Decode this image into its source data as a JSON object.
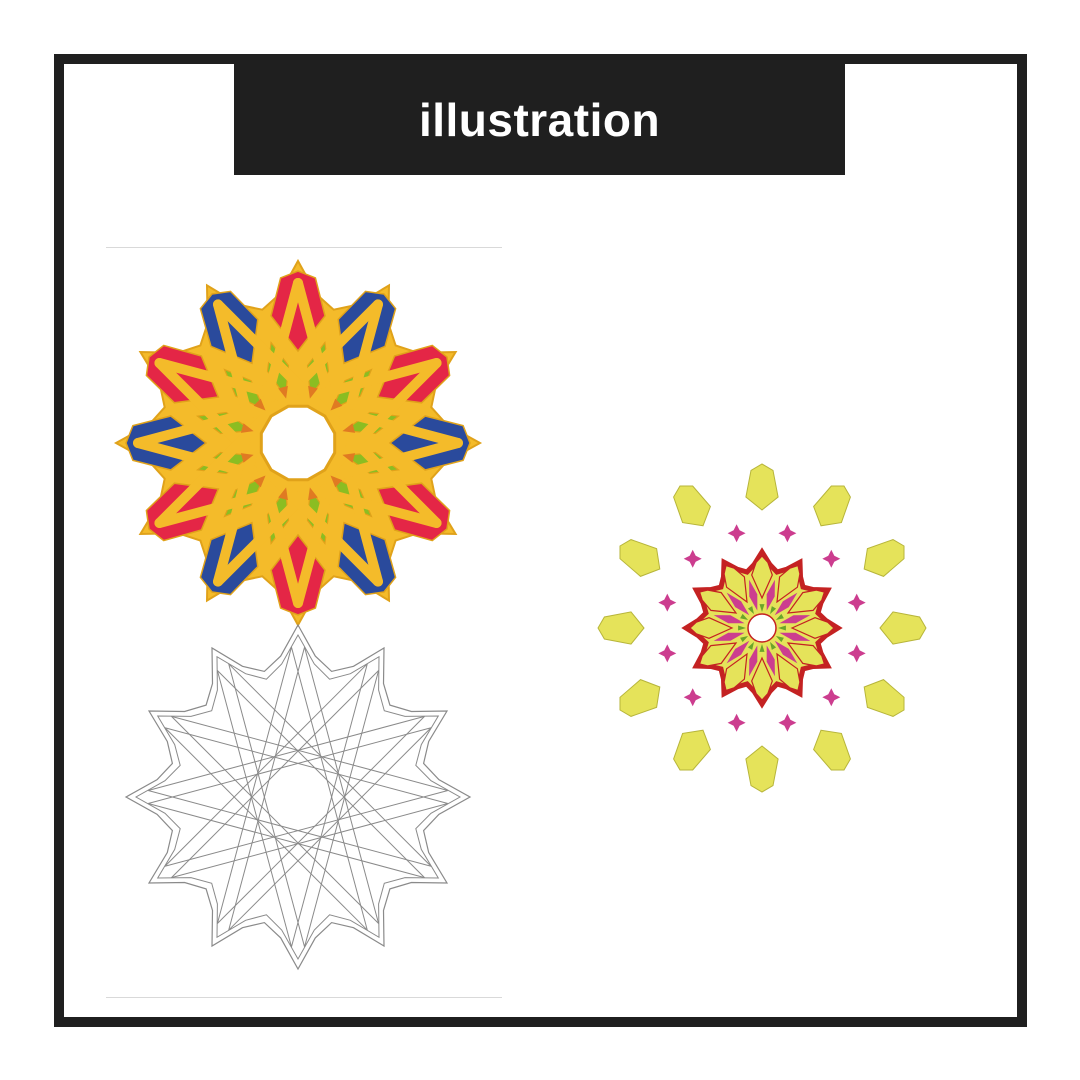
{
  "title": "illustration",
  "colors": {
    "frame": "#1f1f1f",
    "title_text": "#ffffff",
    "gold": "#f4bb2a",
    "gold_stroke": "#e0a21a",
    "red": "#e42646",
    "blue": "#2a4a9c",
    "green": "#8bbd22",
    "orange": "#e07a22",
    "outline": "#8a8a8a",
    "dark_red": "#c42222",
    "pale_yellow": "#e5e35a",
    "magenta": "#cc3d8f",
    "small_green": "#6aa52a",
    "divider": "#d9d9d9"
  },
  "figures": [
    {
      "name": "colored-twelve-point-rosette",
      "palette": [
        "red",
        "blue",
        "green",
        "gold",
        "orange"
      ]
    },
    {
      "name": "outline-twelve-point-rosette",
      "palette": [
        "outline"
      ]
    },
    {
      "name": "small-rosette-with-petals",
      "palette": [
        "dark_red",
        "pale_yellow",
        "magenta",
        "small_green"
      ]
    }
  ]
}
